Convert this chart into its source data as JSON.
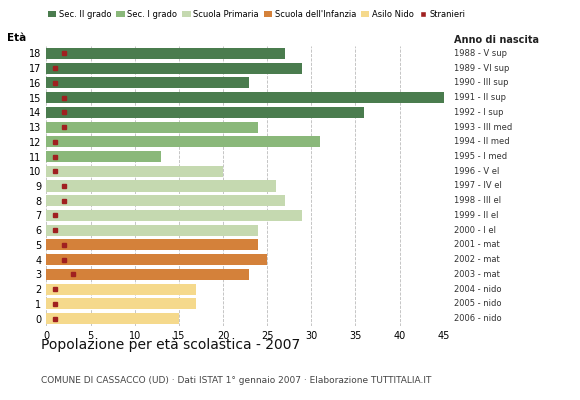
{
  "ages": [
    18,
    17,
    16,
    15,
    14,
    13,
    12,
    11,
    10,
    9,
    8,
    7,
    6,
    5,
    4,
    3,
    2,
    1,
    0
  ],
  "years": [
    "1988 - V sup",
    "1989 - VI sup",
    "1990 - III sup",
    "1991 - II sup",
    "1992 - I sup",
    "1993 - III med",
    "1994 - II med",
    "1995 - I med",
    "1996 - V el",
    "1997 - IV el",
    "1998 - III el",
    "1999 - II el",
    "2000 - I el",
    "2001 - mat",
    "2002 - mat",
    "2003 - mat",
    "2004 - nido",
    "2005 - nido",
    "2006 - nido"
  ],
  "values": [
    27,
    29,
    23,
    45,
    36,
    24,
    31,
    13,
    20,
    26,
    27,
    29,
    24,
    24,
    25,
    23,
    17,
    17,
    15
  ],
  "stranieri": [
    2,
    1,
    1,
    2,
    2,
    2,
    1,
    1,
    1,
    2,
    2,
    1,
    1,
    2,
    2,
    3,
    1,
    1,
    1
  ],
  "bar_colors": [
    "#4a7c4e",
    "#4a7c4e",
    "#4a7c4e",
    "#4a7c4e",
    "#4a7c4e",
    "#8ab87a",
    "#8ab87a",
    "#8ab87a",
    "#c5d9b0",
    "#c5d9b0",
    "#c5d9b0",
    "#c5d9b0",
    "#c5d9b0",
    "#d4813a",
    "#d4813a",
    "#d4813a",
    "#f5d98c",
    "#f5d98c",
    "#f5d98c"
  ],
  "stranieri_color": "#a02020",
  "legend_labels": [
    "Sec. II grado",
    "Sec. I grado",
    "Scuola Primaria",
    "Scuola dell'Infanzia",
    "Asilo Nido",
    "Stranieri"
  ],
  "legend_colors": [
    "#4a7c4e",
    "#8ab87a",
    "#c5d9b0",
    "#d4813a",
    "#f5d98c",
    "#a02020"
  ],
  "title": "Popolazione per età scolastica - 2007",
  "subtitle": "COMUNE DI CASSACCO (UD) · Dati ISTAT 1° gennaio 2007 · Elaborazione TUTTITALIA.IT",
  "ylabel_left": "Età",
  "xlabel_right": "Anno di nascita",
  "xlim": [
    0,
    45
  ],
  "xticks": [
    0,
    5,
    10,
    15,
    20,
    25,
    30,
    35,
    40,
    45
  ],
  "bar_height": 0.75,
  "bg_color": "#ffffff",
  "grid_color": "#bbbbbb"
}
